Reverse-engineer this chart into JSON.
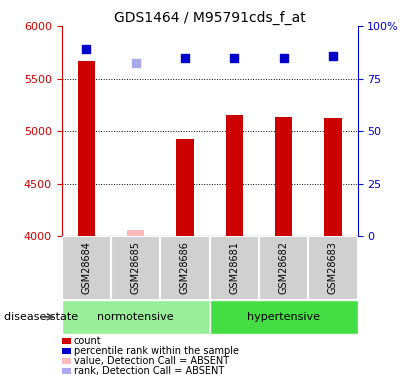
{
  "title": "GDS1464 / M95791cds_f_at",
  "samples": [
    "GSM28684",
    "GSM28685",
    "GSM28686",
    "GSM28681",
    "GSM28682",
    "GSM28683"
  ],
  "bar_values": [
    5670,
    4055,
    4930,
    5155,
    5140,
    5130
  ],
  "bar_absent": [
    false,
    true,
    false,
    false,
    false,
    false
  ],
  "bar_color_present": "#cc0000",
  "bar_color_absent": "#ffbbbb",
  "scatter_values": [
    5785,
    5648,
    5700,
    5700,
    5700,
    5720
  ],
  "scatter_absent": [
    false,
    true,
    false,
    false,
    false,
    false
  ],
  "scatter_color_present": "#0000cc",
  "scatter_color_absent": "#aaaaee",
  "ylim_left": [
    4000,
    6000
  ],
  "ylim_right": [
    0,
    100
  ],
  "yticks_left": [
    4000,
    4500,
    5000,
    5500,
    6000
  ],
  "yticks_right": [
    0,
    25,
    50,
    75,
    100
  ],
  "yticklabels_right": [
    "0",
    "25",
    "50",
    "75",
    "100%"
  ],
  "groups": [
    {
      "label": "normotensive",
      "indices": [
        0,
        1,
        2
      ],
      "color": "#99ee99"
    },
    {
      "label": "hypertensive",
      "indices": [
        3,
        4,
        5
      ],
      "color": "#44dd44"
    }
  ],
  "group_label": "disease state",
  "legend_items": [
    {
      "color": "#cc0000",
      "label": "count"
    },
    {
      "color": "#0000cc",
      "label": "percentile rank within the sample"
    },
    {
      "color": "#ffbbbb",
      "label": "value, Detection Call = ABSENT"
    },
    {
      "color": "#aaaaee",
      "label": "rank, Detection Call = ABSENT"
    }
  ],
  "bar_width": 0.35,
  "scatter_marker_size": 40,
  "title_fontsize": 10,
  "tick_fontsize": 8,
  "left_tick_color": "#cc0000",
  "right_tick_color": "#0000cc",
  "cell_color": "#d0d0d0",
  "cell_edge_color": "#ffffff"
}
